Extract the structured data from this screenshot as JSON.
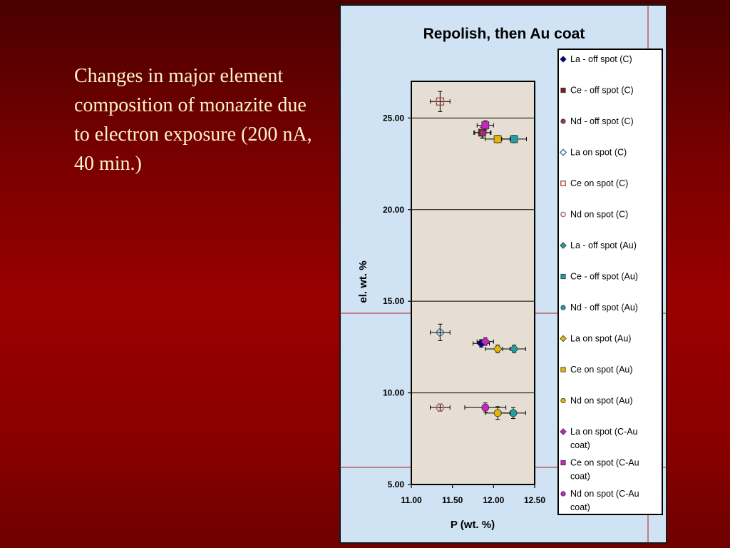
{
  "slide": {
    "text": "Changes in major element composition of monazite due to electron exposure (200 nA, 40 min.)"
  },
  "colors": {
    "background_top": "#4a0000",
    "background_mid": "#9a0000",
    "chart_panel": "#cfe3f4",
    "plot_area": "#e6ded3"
  },
  "chart_data": {
    "type": "scatter",
    "title": "Repolish, then Au coat",
    "xlabel": "P (wt. %)",
    "ylabel": "el. wt. %",
    "xlim": [
      11.0,
      12.5
    ],
    "ylim": [
      5.0,
      27.0
    ],
    "x_ticks": [
      "11.00",
      "11.50",
      "12.00",
      "12.50"
    ],
    "y_ticks": [
      "5.00",
      "10.00",
      "15.00",
      "20.00",
      "25.00"
    ],
    "grid": "horizontal",
    "legend_position": "right",
    "series": [
      {
        "name": "La - off spot (C)",
        "marker": "diamond",
        "color": "#00008b",
        "filled": true,
        "points": [
          [
            11.85,
            12.7
          ]
        ],
        "xerr": 0.1,
        "yerr": 0.2
      },
      {
        "name": "Ce - off spot (C)",
        "marker": "square",
        "color": "#8b1a1a",
        "filled": true,
        "points": [
          [
            11.86,
            24.2
          ]
        ],
        "xerr": 0.1,
        "yerr": 0.3
      },
      {
        "name": "Nd - off spot (C)",
        "marker": "circle",
        "color": "#a0306a",
        "filled": true,
        "points": [
          [
            11.87,
            24.2
          ]
        ],
        "xerr": 0.1,
        "yerr": 0.3
      },
      {
        "name": "La on spot (C)",
        "marker": "diamond",
        "color": "#4a6fa5",
        "filled": false,
        "points": [
          [
            11.35,
            13.3
          ]
        ],
        "xerr": 0.12,
        "yerr": 0.45
      },
      {
        "name": "Ce on spot (C)",
        "marker": "square",
        "color": "#b04a4a",
        "filled": false,
        "points": [
          [
            11.35,
            25.9
          ]
        ],
        "xerr": 0.12,
        "yerr": 0.55
      },
      {
        "name": "Nd on spot (C)",
        "marker": "circle",
        "color": "#b06080",
        "filled": false,
        "points": [
          [
            11.35,
            9.2
          ]
        ],
        "xerr": 0.12,
        "yerr": 0.2
      },
      {
        "name": "La - off spot (Au)",
        "marker": "diamond",
        "color": "#20a0a0",
        "filled": true,
        "points": [
          [
            12.25,
            12.4
          ]
        ],
        "xerr": 0.14,
        "yerr": 0.2
      },
      {
        "name": "Ce - off spot (Au)",
        "marker": "square",
        "color": "#20a0a0",
        "filled": true,
        "points": [
          [
            12.25,
            23.85
          ]
        ],
        "xerr": 0.15,
        "yerr": 0.2
      },
      {
        "name": "Nd - off spot (Au)",
        "marker": "circle",
        "color": "#20a0a0",
        "filled": true,
        "points": [
          [
            12.24,
            8.9
          ]
        ],
        "xerr": 0.15,
        "yerr": 0.3
      },
      {
        "name": "La on spot (Au)",
        "marker": "diamond",
        "color": "#e8b800",
        "filled": true,
        "points": [
          [
            12.05,
            12.4
          ]
        ],
        "xerr": 0.15,
        "yerr": 0.2
      },
      {
        "name": "Ce on spot (Au)",
        "marker": "square",
        "color": "#e8b800",
        "filled": true,
        "points": [
          [
            12.05,
            23.85
          ]
        ],
        "xerr": 0.15,
        "yerr": 0.2
      },
      {
        "name": "Nd on spot (Au)",
        "marker": "circle",
        "color": "#e8b800",
        "filled": true,
        "points": [
          [
            12.05,
            8.9
          ]
        ],
        "xerr": 0.15,
        "yerr": 0.35
      },
      {
        "name": "La on spot (C-Au coat)",
        "marker": "diamond",
        "color": "#cc22cc",
        "filled": true,
        "points": [
          [
            11.9,
            12.8
          ]
        ],
        "xerr": 0.1,
        "yerr": 0.2
      },
      {
        "name": "Ce on spot (C-Au coat)",
        "marker": "square",
        "color": "#cc22cc",
        "filled": true,
        "points": [
          [
            11.9,
            24.6
          ]
        ],
        "xerr": 0.1,
        "yerr": 0.25
      },
      {
        "name": "Nd on spot (C-Au coat)",
        "marker": "circle",
        "color": "#cc22cc",
        "filled": true,
        "points": [
          [
            11.9,
            9.2
          ]
        ],
        "xerr": 0.25,
        "yerr": 0.25
      }
    ]
  }
}
